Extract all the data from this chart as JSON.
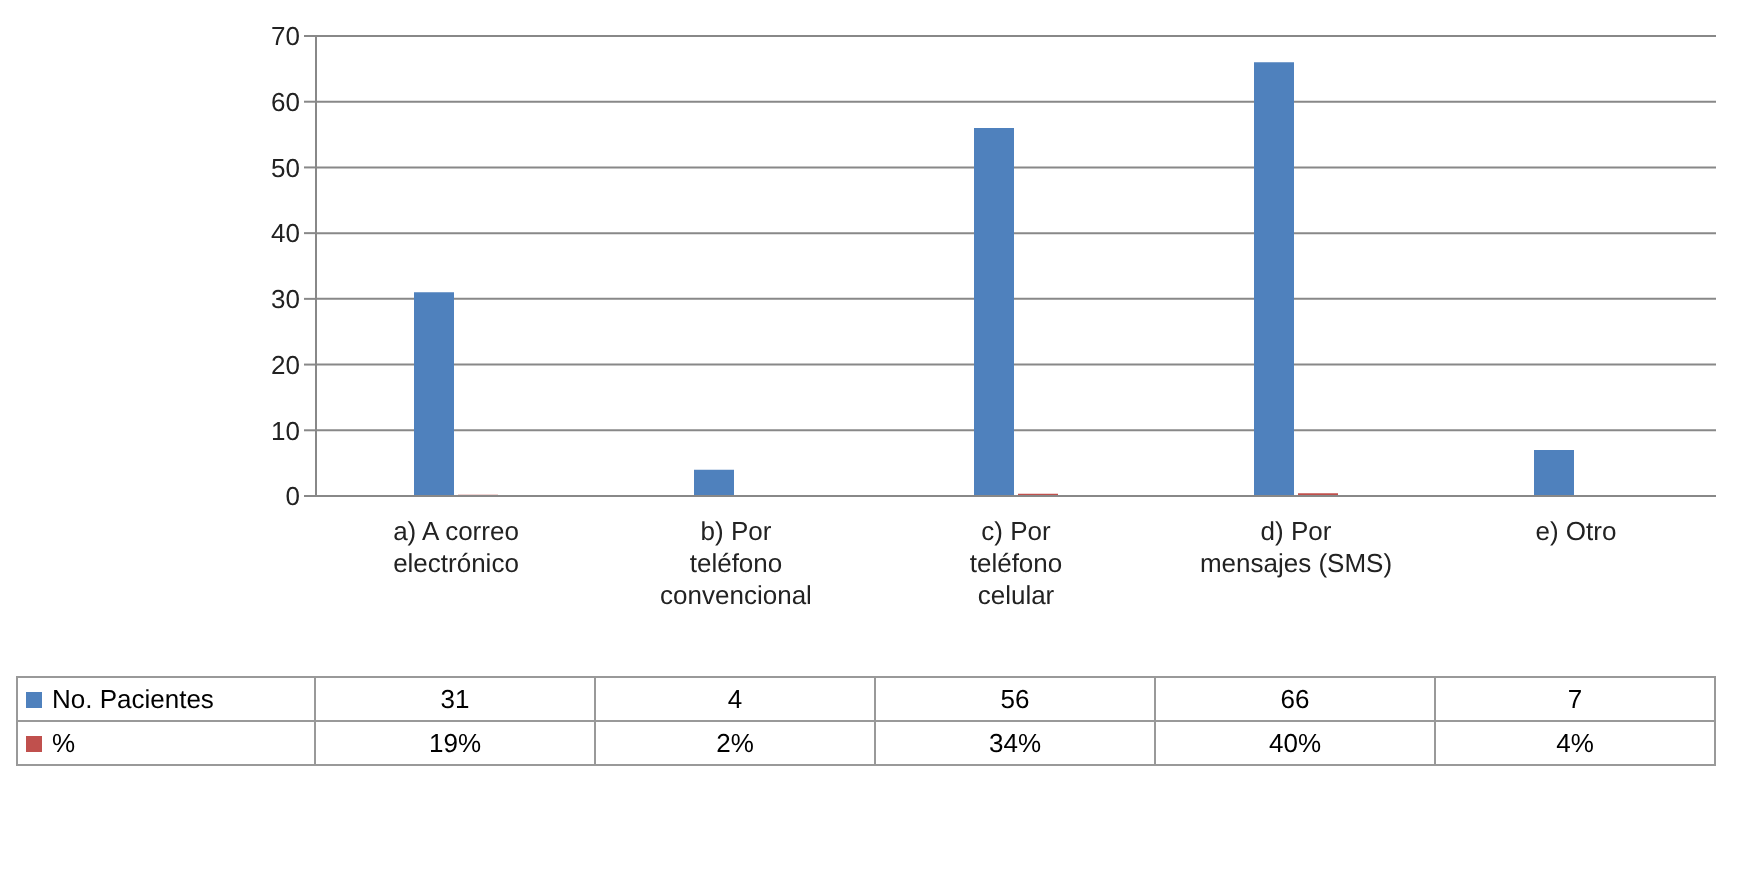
{
  "chart_data": {
    "type": "bar",
    "categories": [
      "a) A correo electrónico",
      "b) Por teléfono convencional",
      "c) Por teléfono celular",
      "d) Por mensajes (SMS)",
      "e) Otro"
    ],
    "series": [
      {
        "name": "No. Pacientes",
        "color": "#4f81bd",
        "values": [
          31,
          4,
          56,
          66,
          7
        ],
        "value_labels": [
          "31",
          "4",
          "56",
          "66",
          "7"
        ]
      },
      {
        "name": "%",
        "color": "#c0504d",
        "values": [
          0.19,
          0.02,
          0.34,
          0.4,
          0.04
        ],
        "value_labels": [
          "19%",
          "2%",
          "34%",
          "40%",
          "4%"
        ]
      }
    ],
    "ylim": [
      0,
      70
    ],
    "yticks": [
      0,
      10,
      20,
      30,
      40,
      50,
      60,
      70
    ],
    "grid": "y",
    "legend": "bottom"
  }
}
